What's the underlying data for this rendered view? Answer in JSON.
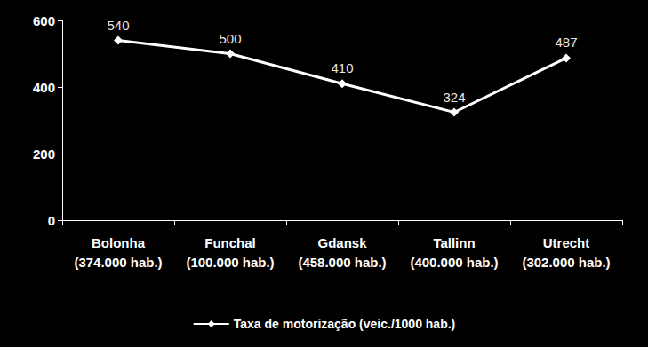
{
  "chart_data": {
    "type": "line",
    "categories": [
      "Bolonha\n(374.000 hab.)",
      "Funchal\n(100.000 hab.)",
      "Gdansk\n(458.000 hab.)",
      "Tallinn\n(400.000 hab.)",
      "Utrecht\n(302.000 hab.)"
    ],
    "series": [
      {
        "name": "Taxa de motorização (veic./1000 hab.)",
        "color": "#ffffff",
        "marker": "diamond",
        "values": [
          540,
          500,
          410,
          324,
          487
        ]
      }
    ],
    "ylim": [
      0,
      600
    ],
    "yticks": [
      0,
      200,
      400,
      600
    ],
    "grid": false,
    "legend": "bottom",
    "data_labels": true
  }
}
